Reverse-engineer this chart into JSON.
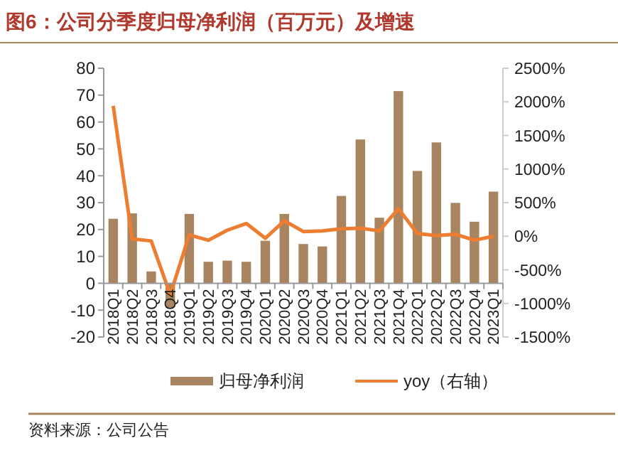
{
  "chart_data": {
    "type": "bar",
    "title": "图6：公司分季度归母净利润（百万元）及增速",
    "categories": [
      "2018Q1",
      "2018Q2",
      "2018Q3",
      "2018Q4",
      "2019Q1",
      "2019Q2",
      "2019Q3",
      "2019Q4",
      "2020Q1",
      "2020Q2",
      "2020Q3",
      "2020Q4",
      "2021Q1",
      "2021Q2",
      "2021Q3",
      "2021Q4",
      "2022Q1",
      "2022Q2",
      "2022Q3",
      "2022Q4",
      "2023Q1"
    ],
    "series": [
      {
        "name": "归母净利润",
        "color": "#a88560",
        "values": [
          24,
          26,
          4.4,
          -9,
          25.8,
          8,
          8.4,
          8,
          15.8,
          25.8,
          14.6,
          13.7,
          32.5,
          53.5,
          24.4,
          71.5,
          41.8,
          52.4,
          29.9,
          22.9,
          34.1
        ]
      },
      {
        "name": "yoy（右轴）",
        "type": "line",
        "axis": "y2",
        "color": "#ed7d31",
        "values": [
          1940,
          -40,
          -70,
          -870,
          20,
          -60,
          90,
          190,
          -30,
          230,
          70,
          80,
          110,
          120,
          80,
          410,
          40,
          10,
          30,
          -60,
          0
        ]
      }
    ],
    "ylim": [
      -20,
      80
    ],
    "yticks": [
      -20,
      -10,
      0,
      10,
      20,
      30,
      40,
      50,
      60,
      70,
      80
    ],
    "y2lim": [
      -1500,
      2500
    ],
    "y2ticks": [
      {
        "value": -1500,
        "label": "-1500%"
      },
      {
        "value": -1000,
        "label": "-1000%"
      },
      {
        "value": -500,
        "label": "-500%"
      },
      {
        "value": 0,
        "label": "0%"
      },
      {
        "value": 500,
        "label": "500%"
      },
      {
        "value": 1000,
        "label": "1000%"
      },
      {
        "value": 1500,
        "label": "1500%"
      },
      {
        "value": 2000,
        "label": "2000%"
      },
      {
        "value": 2500,
        "label": "2500%"
      }
    ],
    "grid": false,
    "legend": "bottom",
    "annotations": [
      "资料来源：公司公告"
    ]
  }
}
